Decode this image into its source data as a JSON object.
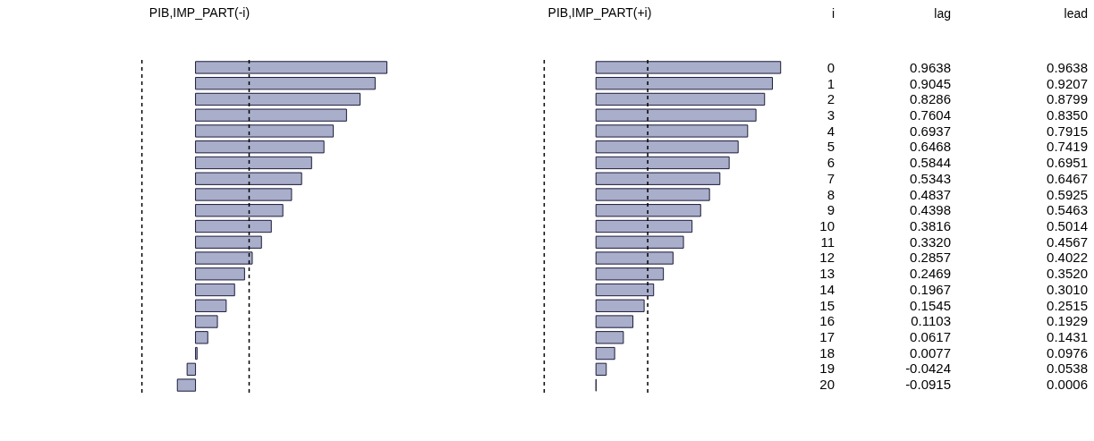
{
  "chart_data": [
    {
      "type": "bar",
      "orientation": "horizontal",
      "title": "PIB,IMP_PART(-i)",
      "tick_labels": false,
      "categories": [
        "0",
        "1",
        "2",
        "3",
        "4",
        "5",
        "6",
        "7",
        "8",
        "9",
        "10",
        "11",
        "12",
        "13",
        "14",
        "15",
        "16",
        "17",
        "18",
        "19",
        "20"
      ],
      "series": [
        {
          "name": "lag",
          "color": "#a9aecb",
          "values": [
            0.9638,
            0.9045,
            0.8286,
            0.7604,
            0.6937,
            0.6468,
            0.5844,
            0.5343,
            0.4837,
            0.4398,
            0.3816,
            0.332,
            0.2857,
            0.2469,
            0.1967,
            0.1545,
            0.1103,
            0.0617,
            0.0077,
            -0.0424,
            -0.0915
          ],
          "value_labels": [
            "0.9638",
            "0.9045",
            "0.8286",
            "0.7604",
            "0.6937",
            "0.6468",
            "0.5844",
            "0.5343",
            "0.4837",
            "0.4398",
            "0.3816",
            "0.3320",
            "0.2857",
            "0.2469",
            "0.1967",
            "0.1545",
            "0.1103",
            "0.0617",
            "0.0077",
            "-0.0424",
            "-0.0915"
          ]
        }
      ],
      "ref_lines": [
        {
          "axis": "x",
          "value": -0.27,
          "line_style": "dashed"
        },
        {
          "axis": "x",
          "value": 0.27,
          "line_style": "dashed"
        }
      ]
    },
    {
      "type": "bar",
      "orientation": "horizontal",
      "title": "PIB,IMP_PART(+i)",
      "ylabel": "i",
      "tick_labels": "y",
      "categories": [
        "0",
        "1",
        "2",
        "3",
        "4",
        "5",
        "6",
        "7",
        "8",
        "9",
        "10",
        "11",
        "12",
        "13",
        "14",
        "15",
        "16",
        "17",
        "18",
        "19",
        "20"
      ],
      "series": [
        {
          "name": "lead",
          "color": "#a9aecb",
          "values": [
            0.9638,
            0.9207,
            0.8799,
            0.835,
            0.7915,
            0.7419,
            0.6951,
            0.6467,
            0.5925,
            0.5463,
            0.5014,
            0.4567,
            0.4022,
            0.352,
            0.301,
            0.2515,
            0.1929,
            0.1431,
            0.0976,
            0.0538,
            0.0006
          ],
          "value_labels": [
            "0.9638",
            "0.9207",
            "0.8799",
            "0.8350",
            "0.7915",
            "0.7419",
            "0.6951",
            "0.6467",
            "0.5925",
            "0.5463",
            "0.5014",
            "0.4567",
            "0.4022",
            "0.3520",
            "0.3010",
            "0.2515",
            "0.1929",
            "0.1431",
            "0.0976",
            "0.0538",
            "0.0006"
          ]
        }
      ],
      "ref_lines": [
        {
          "axis": "x",
          "value": -0.27,
          "line_style": "dashed"
        },
        {
          "axis": "x",
          "value": 0.27,
          "line_style": "dashed"
        }
      ]
    }
  ]
}
